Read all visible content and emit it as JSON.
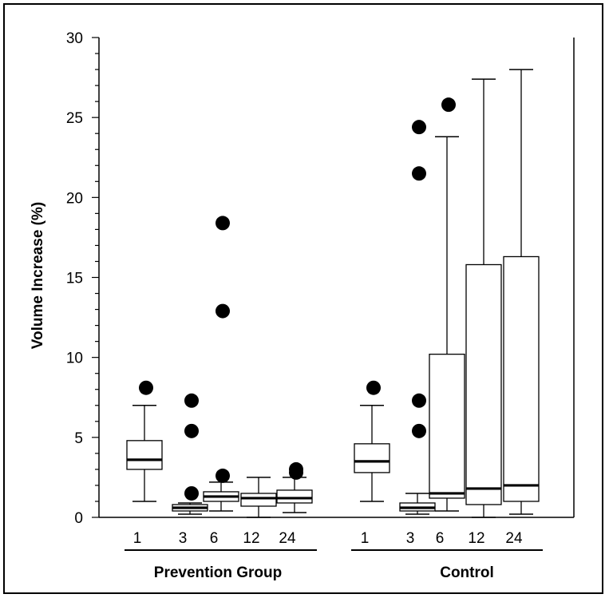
{
  "chart_data": {
    "type": "box",
    "title": "",
    "ylabel": "Volume Increase (%)",
    "ylim": [
      0,
      30
    ],
    "yticks": [
      0,
      5,
      10,
      15,
      20,
      25,
      30
    ],
    "groups": [
      {
        "name": "Prevention Group",
        "boxes": [
          {
            "label": "1",
            "whisker_low": 1.0,
            "q1": 3.0,
            "median": 3.6,
            "q3": 4.8,
            "whisker_high": 7.0,
            "outliers": [
              8.1
            ]
          },
          {
            "label": "3",
            "whisker_low": 0.2,
            "q1": 0.4,
            "median": 0.6,
            "q3": 0.8,
            "whisker_high": 0.9,
            "outliers": [
              1.5,
              5.4,
              7.3
            ]
          },
          {
            "label": "6",
            "whisker_low": 0.4,
            "q1": 1.0,
            "median": 1.3,
            "q3": 1.6,
            "whisker_high": 2.2,
            "outliers": [
              2.6,
              12.9,
              18.4
            ]
          },
          {
            "label": "12",
            "whisker_low": 0.0,
            "q1": 0.7,
            "median": 1.2,
            "q3": 1.5,
            "whisker_high": 2.5,
            "outliers": []
          },
          {
            "label": "24",
            "whisker_low": 0.3,
            "q1": 0.9,
            "median": 1.2,
            "q3": 1.7,
            "whisker_high": 2.5,
            "outliers": [
              2.8,
              3.0
            ]
          }
        ]
      },
      {
        "name": "Control",
        "boxes": [
          {
            "label": "1",
            "whisker_low": 1.0,
            "q1": 2.8,
            "median": 3.5,
            "q3": 4.6,
            "whisker_high": 7.0,
            "outliers": [
              8.1
            ]
          },
          {
            "label": "3",
            "whisker_low": 0.2,
            "q1": 0.4,
            "median": 0.6,
            "q3": 0.9,
            "whisker_high": 1.5,
            "outliers": [
              5.4,
              7.3,
              21.5,
              24.4
            ]
          },
          {
            "label": "6",
            "whisker_low": 0.4,
            "q1": 1.2,
            "median": 1.5,
            "q3": 10.2,
            "whisker_high": 23.8,
            "outliers": [
              25.8
            ]
          },
          {
            "label": "12",
            "whisker_low": 0.0,
            "q1": 0.8,
            "median": 1.8,
            "q3": 15.8,
            "whisker_high": 27.4,
            "outliers": []
          },
          {
            "label": "24",
            "whisker_low": 0.2,
            "q1": 1.0,
            "median": 2.0,
            "q3": 16.3,
            "whisker_high": 28.0,
            "outliers": []
          }
        ]
      }
    ]
  }
}
